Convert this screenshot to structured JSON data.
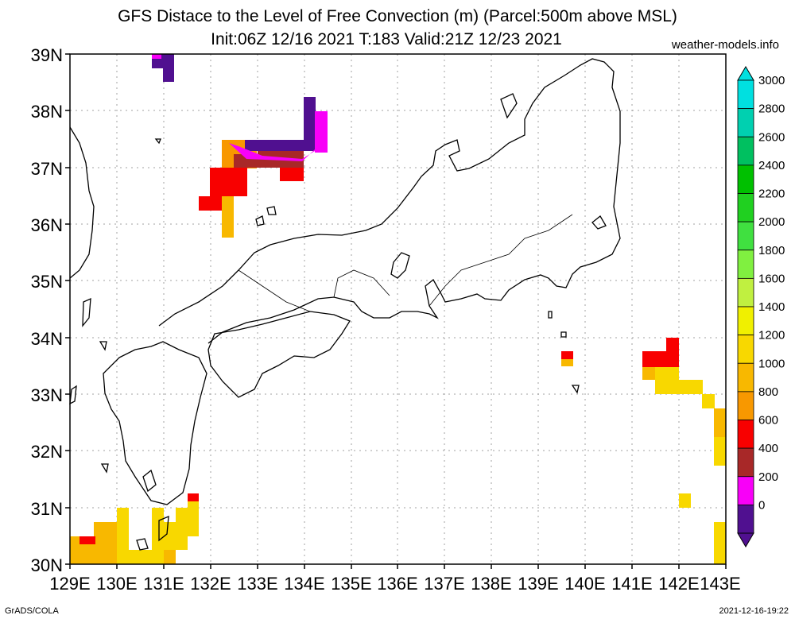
{
  "title_line1": "GFS Distace to the Level of Free Convection (m) (Parcel:500m above MSL)",
  "title_line2": "Init:06Z 12/16 2021 T:183 Valid:21Z 12/23 2021",
  "site": "weather-models.info",
  "footer_left": "GrADS/COLA",
  "footer_right": "2021-12-16-19:22",
  "lat_labels": [
    "39N",
    "38N",
    "37N",
    "36N",
    "35N",
    "34N",
    "33N",
    "32N",
    "31N",
    "30N"
  ],
  "lon_labels": [
    "129E",
    "130E",
    "131E",
    "132E",
    "133E",
    "134E",
    "135E",
    "136E",
    "137E",
    "138E",
    "139E",
    "140E",
    "141E",
    "142E",
    "143E"
  ],
  "colorbar": {
    "labels": [
      "3000",
      "2800",
      "2600",
      "2400",
      "2200",
      "2000",
      "1800",
      "1600",
      "1400",
      "1200",
      "1000",
      "800",
      "600",
      "400",
      "200",
      "0"
    ],
    "colors": [
      "#00e0e0",
      "#00d0b0",
      "#00c060",
      "#00c000",
      "#20d020",
      "#40e040",
      "#80f040",
      "#c0f040",
      "#f0f000",
      "#f8d800",
      "#f8b800",
      "#f89800",
      "#f80000",
      "#a82828",
      "#f800f8",
      "#501090"
    ]
  },
  "map_region": {
    "lon_min": 129,
    "lon_max": 143,
    "lat_min": 30,
    "lat_max": 39
  }
}
